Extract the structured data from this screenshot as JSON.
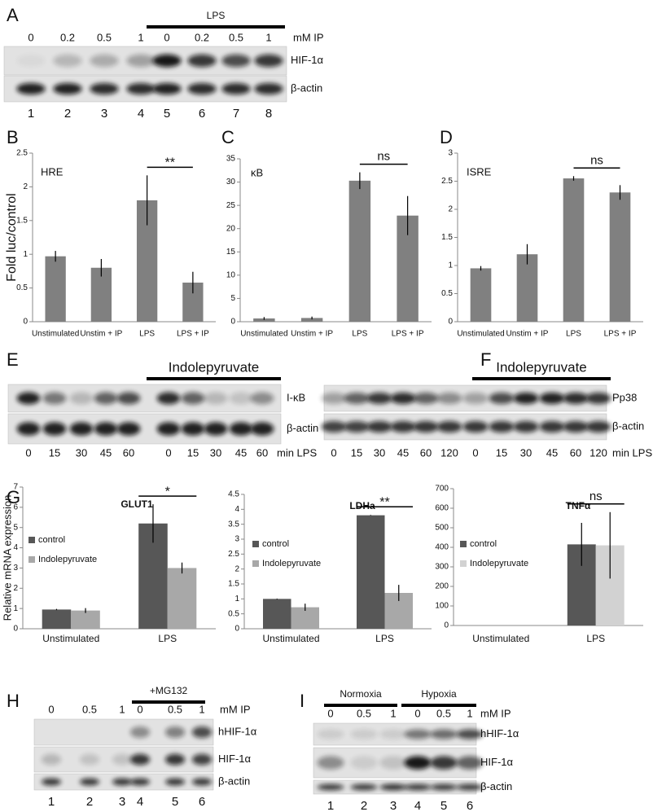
{
  "chart_data": [
    {
      "type": "bar",
      "panel_label": "B",
      "title": "HRE",
      "ylabel": "Fold luc/control",
      "categories": [
        "Unstimulated",
        "Unstim + IP",
        "LPS",
        "LPS + IP"
      ],
      "values": [
        0.97,
        0.8,
        1.8,
        0.58
      ],
      "errors": [
        0.08,
        0.13,
        0.37,
        0.16
      ],
      "color": "#808080",
      "ylim": [
        0,
        2.5
      ],
      "yticks": [
        0,
        0.5,
        1,
        1.5,
        2,
        2.5
      ],
      "annotation": "**"
    },
    {
      "type": "bar",
      "panel_label": "C",
      "title": "κB",
      "categories": [
        "Unstimulated",
        "Unstim + IP",
        "LPS",
        "LPS + IP"
      ],
      "values": [
        0.7,
        0.8,
        30.3,
        22.8
      ],
      "errors": [
        0.3,
        0.3,
        1.8,
        4.2
      ],
      "color": "#808080",
      "ylim": [
        0,
        35
      ],
      "yticks": [
        0,
        5,
        10,
        15,
        20,
        25,
        30,
        35
      ],
      "annotation": "ns"
    },
    {
      "type": "bar",
      "panel_label": "D",
      "title": "ISRE",
      "categories": [
        "Unstimulated",
        "Unstim + IP",
        "LPS",
        "LPS + IP"
      ],
      "values": [
        0.95,
        1.2,
        2.55,
        2.3
      ],
      "errors": [
        0.04,
        0.18,
        0.04,
        0.13
      ],
      "color": "#808080",
      "ylim": [
        0,
        3
      ],
      "yticks": [
        0,
        0.5,
        1,
        1.5,
        2,
        2.5,
        3
      ],
      "annotation": "ns"
    },
    {
      "type": "bar",
      "panel_label": "G",
      "title": "GLUT1",
      "ylabel": "Relative mRNA expression",
      "categories": [
        "Unstimulated",
        "LPS"
      ],
      "series": [
        {
          "name": "control",
          "color": "#575757",
          "values": [
            0.95,
            5.2
          ],
          "errors": [
            0.03,
            0.95
          ]
        },
        {
          "name": "Indolepyruvate",
          "color": "#a8a8a8",
          "values": [
            0.9,
            3.0
          ],
          "errors": [
            0.12,
            0.27
          ]
        }
      ],
      "ylim": [
        0,
        7
      ],
      "yticks": [
        0,
        1,
        2,
        3,
        4,
        5,
        6,
        7
      ],
      "annotation": "*"
    },
    {
      "type": "bar",
      "title": "LDHa",
      "categories": [
        "Unstimulated",
        "LPS"
      ],
      "series": [
        {
          "name": "control",
          "color": "#575757",
          "values": [
            1.0,
            3.8
          ],
          "errors": [
            0.01,
            0.01
          ]
        },
        {
          "name": "Indolepyruvate",
          "color": "#a8a8a8",
          "values": [
            0.72,
            1.2
          ],
          "errors": [
            0.12,
            0.27
          ]
        }
      ],
      "ylim": [
        0,
        4.5
      ],
      "yticks": [
        0,
        0.5,
        1,
        1.5,
        2,
        2.5,
        3,
        3.5,
        4,
        4.5
      ],
      "annotation": "**"
    },
    {
      "type": "bar",
      "title": "TNFα",
      "categories": [
        "Unstimulated",
        "LPS"
      ],
      "series": [
        {
          "name": "control",
          "color": "#575757",
          "values": [
            0,
            415
          ],
          "errors": [
            0,
            110
          ]
        },
        {
          "name": "Indolepyruvate",
          "color": "#d2d2d2",
          "values": [
            0,
            410
          ],
          "errors": [
            0,
            170
          ]
        }
      ],
      "ylim": [
        0,
        700
      ],
      "yticks": [
        0,
        100,
        200,
        300,
        400,
        500,
        600,
        700
      ],
      "annotation": "ns"
    }
  ],
  "blots": [
    {
      "panel_label": "A",
      "headers": [
        "LPS"
      ],
      "lane_labels": [
        "0",
        "0.2",
        "0.5",
        "1",
        "0",
        "0.2",
        "0.5",
        "1"
      ],
      "unit": "mM IP",
      "bands": [
        "HIF-1α",
        "β-actin"
      ],
      "lane_numbers": [
        "1",
        "2",
        "3",
        "4",
        "5",
        "6",
        "7",
        "8"
      ]
    },
    {
      "panel_label": "E",
      "headers": [
        "Indolepyruvate"
      ],
      "lane_labels": [
        "0",
        "15",
        "30",
        "45",
        "60",
        "0",
        "15",
        "30",
        "45",
        "60"
      ],
      "unit": "min LPS",
      "bands": [
        "I-κB",
        "β-actin"
      ]
    },
    {
      "panel_label": "F",
      "headers": [
        "Indolepyruvate"
      ],
      "lane_labels": [
        "0",
        "15",
        "30",
        "45",
        "60",
        "120",
        "0",
        "15",
        "30",
        "45",
        "60",
        "120"
      ],
      "unit": "min LPS",
      "bands": [
        "Pp38",
        "β-actin"
      ]
    },
    {
      "panel_label": "H",
      "headers": [
        "+MG132"
      ],
      "lane_labels": [
        "0",
        "0.5",
        "1",
        "0",
        "0.5",
        "1"
      ],
      "unit": "mM IP",
      "bands": [
        "hHIF-1α",
        "HIF-1α",
        "β-actin"
      ],
      "lane_numbers": [
        "1",
        "2",
        "3",
        "4",
        "5",
        "6"
      ]
    },
    {
      "panel_label": "I",
      "headers": [
        "Normoxia",
        "Hypoxia"
      ],
      "lane_labels": [
        "0",
        "0.5",
        "1",
        "0",
        "0.5",
        "1"
      ],
      "unit": "mM IP",
      "bands": [
        "hHIF-1α",
        "HIF-1α",
        "β-actin"
      ],
      "lane_numbers": [
        "1",
        "2",
        "3",
        "4",
        "5",
        "6"
      ]
    }
  ]
}
